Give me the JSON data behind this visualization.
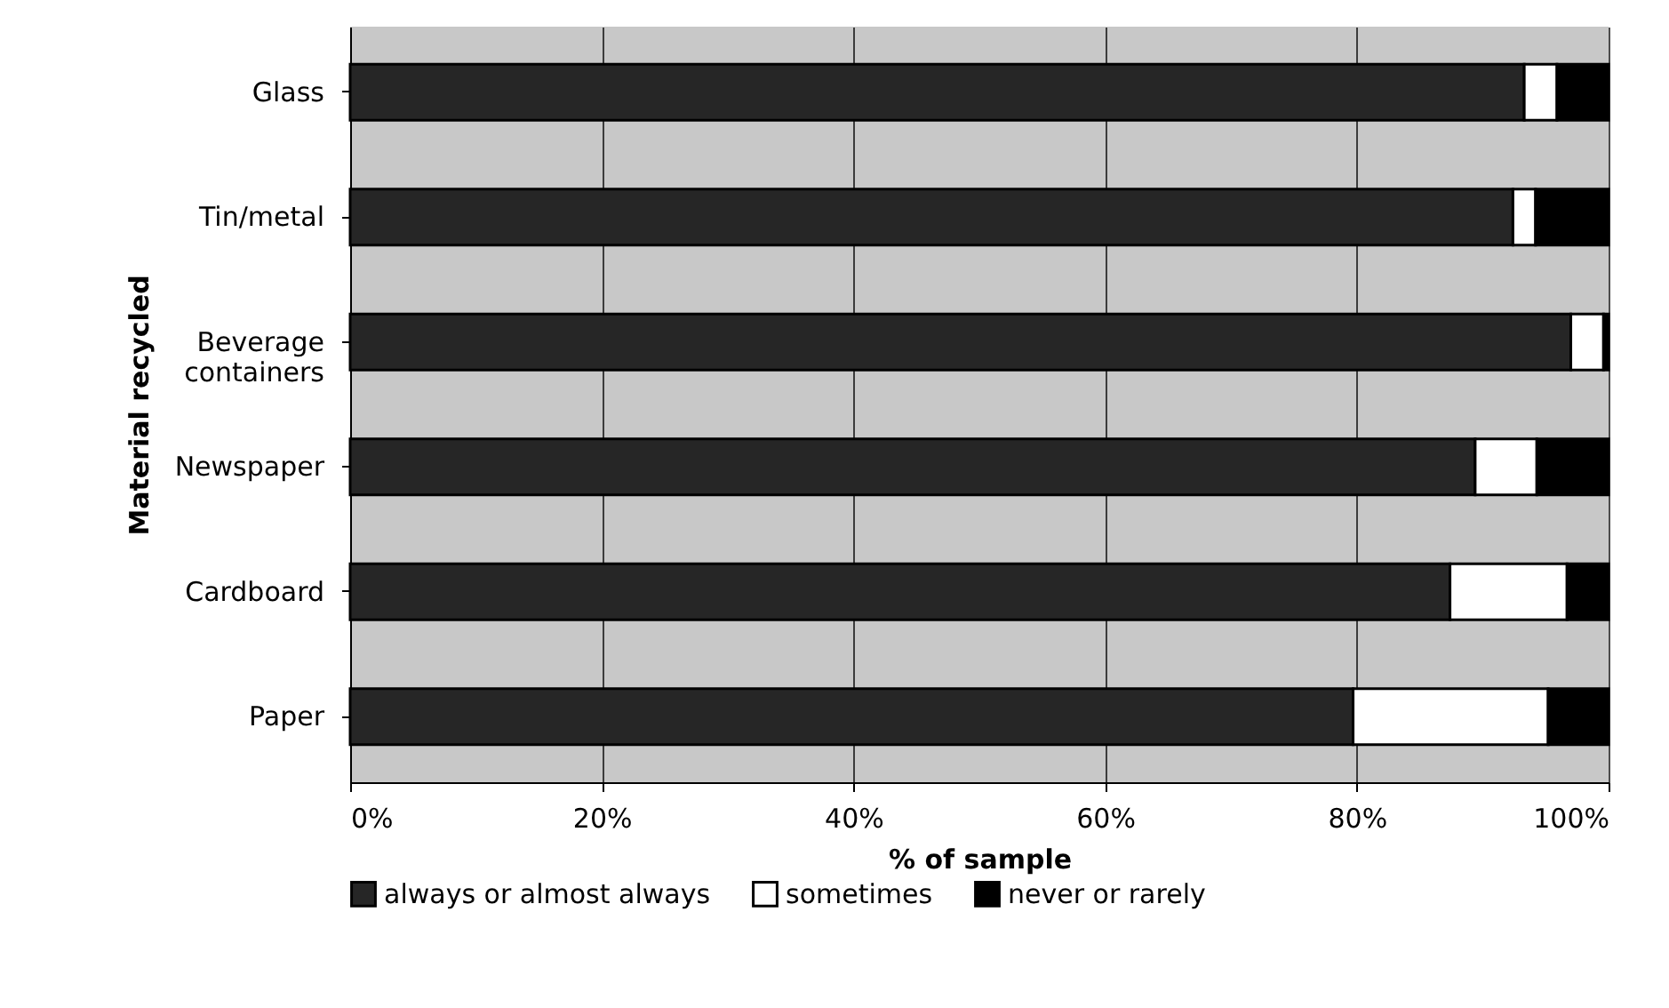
{
  "chart_data": {
    "type": "bar",
    "orientation": "horizontal",
    "stacked": true,
    "xlabel": "% of sample",
    "ylabel": "Material recycled",
    "categories": [
      "Glass",
      "Tin/metal",
      "Beverage containers",
      "Newspaper",
      "Cardboard",
      "Paper"
    ],
    "series": [
      {
        "name": "always or almost always",
        "color": "#262626",
        "values": [
          93.3,
          92.4,
          97.0,
          89.4,
          87.4,
          79.7
        ]
      },
      {
        "name": "sometimes",
        "color": "#ffffff",
        "values": [
          2.6,
          1.8,
          2.6,
          4.9,
          9.3,
          15.5
        ]
      },
      {
        "name": "never or rarely",
        "color": "#000000",
        "values": [
          4.1,
          5.8,
          0.4,
          5.7,
          3.3,
          4.8
        ]
      }
    ],
    "xlim": [
      0,
      100
    ],
    "xticks": [
      {
        "value": 0,
        "label": "0%"
      },
      {
        "value": 20,
        "label": "20%"
      },
      {
        "value": 40,
        "label": "40%"
      },
      {
        "value": 60,
        "label": "60%"
      },
      {
        "value": 80,
        "label": "80%"
      },
      {
        "value": 100,
        "label": "100%"
      }
    ],
    "grid": "x",
    "legend": "bottom"
  }
}
